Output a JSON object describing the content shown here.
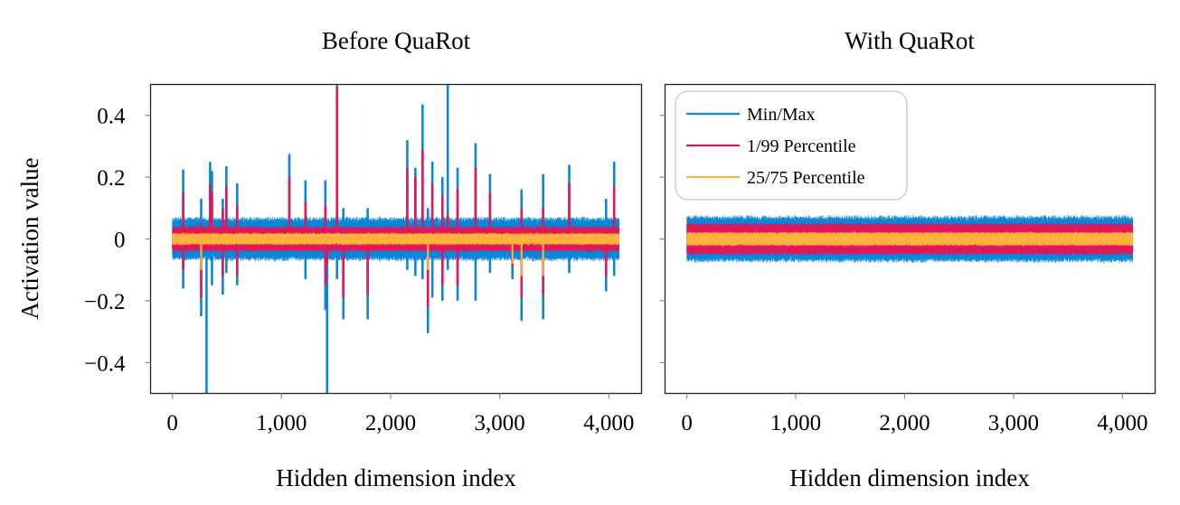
{
  "colors": {
    "minmax": "#0a87d9",
    "p1_99": "#e0195a",
    "p25_75": "#ffb23f"
  },
  "legend": {
    "placement": "top-left of right panel",
    "entries": [
      "Min/Max",
      "1/99 Percentile",
      "25/75 Percentile"
    ]
  },
  "chart_data": [
    {
      "type": "area",
      "title": "Before QuaRot",
      "xlabel": "Hidden dimension index",
      "ylabel": "Activation value",
      "xlim": [
        -200,
        4300
      ],
      "ylim": [
        -0.5,
        0.5
      ],
      "xticks": [
        "0",
        "1,000",
        "2,000",
        "3,000",
        "4,000"
      ],
      "xtick_values": [
        0,
        1000,
        2000,
        3000,
        4000
      ],
      "yticks": [
        "−0.4",
        "−0.2",
        "0",
        "0.2",
        "0.4"
      ],
      "ytick_values": [
        -0.4,
        -0.2,
        0,
        0.2,
        0.4
      ],
      "n_dims": 4096,
      "grid": false,
      "baseline": {
        "max": 0.06,
        "p99": 0.035,
        "p75": 0.015,
        "p25": -0.015,
        "p1": -0.035,
        "min": -0.06
      },
      "outliers": [
        {
          "dim": 99,
          "max": 0.225,
          "p99": 0.15,
          "min": -0.16,
          "p1": -0.1
        },
        {
          "dim": 264,
          "max": 0.13,
          "p99": 0.05,
          "min": -0.25,
          "p1": -0.19,
          "p25": -0.1
        },
        {
          "dim": 313,
          "min": -0.5
        },
        {
          "dim": 346,
          "max": 0.25,
          "p99": 0.18
        },
        {
          "dim": 363,
          "max": 0.22,
          "p99": 0.15,
          "min": -0.15
        },
        {
          "dim": 462,
          "max": 0.13,
          "p99": 0.1,
          "min": -0.18,
          "p1": -0.12
        },
        {
          "dim": 495,
          "max": 0.235,
          "p99": 0.17,
          "min": -0.11
        },
        {
          "dim": 594,
          "max": 0.18,
          "p99": 0.11,
          "min": -0.15,
          "p1": -0.12
        },
        {
          "dim": 1072,
          "max": 0.275,
          "p99": 0.2
        },
        {
          "dim": 1220,
          "max": 0.19,
          "p99": 0.12,
          "min": -0.13
        },
        {
          "dim": 1402,
          "max": 0.19,
          "p99": 0.11,
          "min": -0.23,
          "p1": -0.15
        },
        {
          "dim": 1418,
          "min": -0.5,
          "p1": -0.08
        },
        {
          "dim": 1509,
          "max": 0.5,
          "p99": 0.49,
          "min": -0.13
        },
        {
          "dim": 1567,
          "max": 0.1,
          "min": -0.26,
          "p1": -0.19
        },
        {
          "dim": 1790,
          "max": 0.1,
          "min": -0.26,
          "p1": -0.18
        },
        {
          "dim": 2153,
          "max": 0.32,
          "p99": 0.23,
          "min": -0.1
        },
        {
          "dim": 2227,
          "max": 0.23,
          "p99": 0.2,
          "min": -0.12
        },
        {
          "dim": 2293,
          "max": 0.435,
          "p99": 0.29,
          "min": -0.13
        },
        {
          "dim": 2342,
          "max": 0.1,
          "min": -0.305,
          "p1": -0.22,
          "p25": -0.1
        },
        {
          "dim": 2383,
          "max": 0.25,
          "p99": 0.18,
          "min": -0.19
        },
        {
          "dim": 2475,
          "max": 0.2,
          "p99": 0.14,
          "min": -0.2,
          "p1": -0.15
        },
        {
          "dim": 2524,
          "max": 0.5,
          "p99": 0.08,
          "min": -0.1
        },
        {
          "dim": 2614,
          "max": 0.23,
          "p99": 0.16,
          "min": -0.2,
          "p1": -0.15
        },
        {
          "dim": 2779,
          "max": 0.31,
          "p99": 0.23,
          "min": -0.2
        },
        {
          "dim": 2911,
          "max": 0.21,
          "p99": 0.15,
          "min": -0.11
        },
        {
          "dim": 3117,
          "min": -0.13,
          "p1": -0.09,
          "p25": -0.08
        },
        {
          "dim": 3200,
          "max": 0.16,
          "p99": 0.1,
          "min": -0.265,
          "p1": -0.19,
          "p25": -0.12
        },
        {
          "dim": 3398,
          "max": 0.21,
          "p99": 0.1,
          "min": -0.26,
          "p1": -0.18,
          "p25": -0.12
        },
        {
          "dim": 3637,
          "max": 0.24,
          "p99": 0.18,
          "min": -0.11
        },
        {
          "dim": 3975,
          "max": 0.13,
          "min": -0.17,
          "p1": -0.12
        },
        {
          "dim": 4049,
          "max": 0.25,
          "p99": 0.17,
          "min": -0.12
        }
      ]
    },
    {
      "type": "area",
      "title": "With QuaRot",
      "xlabel": "Hidden dimension index",
      "xlim": [
        -200,
        4300
      ],
      "ylim": [
        -0.5,
        0.5
      ],
      "xticks": [
        "0",
        "1,000",
        "2,000",
        "3,000",
        "4,000"
      ],
      "xtick_values": [
        0,
        1000,
        2000,
        3000,
        4000
      ],
      "ytick_values": [
        -0.4,
        -0.2,
        0,
        0.2,
        0.4
      ],
      "n_dims": 4096,
      "grid": false,
      "baseline": {
        "max": 0.065,
        "p99": 0.045,
        "p75": 0.018,
        "p25": -0.018,
        "p1": -0.045,
        "min": -0.065
      },
      "outliers": []
    }
  ]
}
